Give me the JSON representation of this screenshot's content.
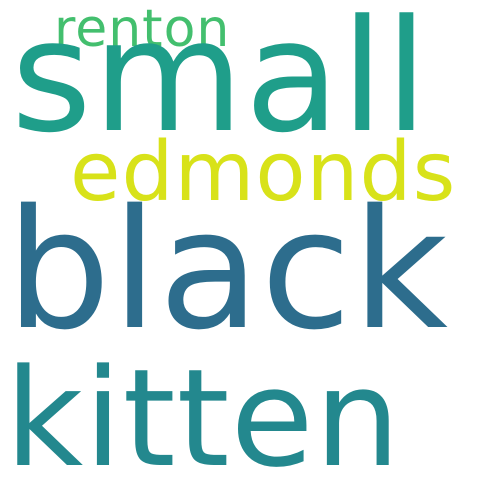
{
  "words": [
    {
      "id": "renton",
      "text": "renton",
      "color": "#43bf6e"
    },
    {
      "id": "small",
      "text": "small",
      "color": "#1f9e8a"
    },
    {
      "id": "edmonds",
      "text": "edmonds",
      "color": "#d8e219"
    },
    {
      "id": "black",
      "text": "black",
      "color": "#2d6d8d"
    },
    {
      "id": "kitten",
      "text": "kitten",
      "color": "#23888e"
    }
  ]
}
